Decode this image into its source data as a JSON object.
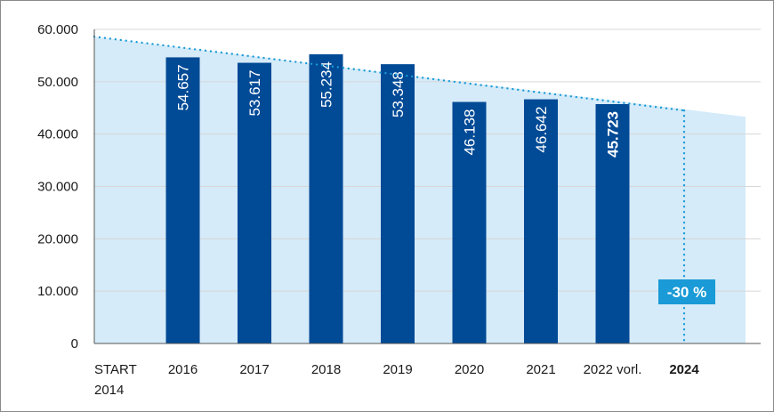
{
  "chart_data": {
    "type": "bar",
    "ylim": [
      0,
      60000
    ],
    "y_ticks": [
      {
        "value": 0,
        "label": "0"
      },
      {
        "value": 10000,
        "label": "10.000"
      },
      {
        "value": 20000,
        "label": "20.000"
      },
      {
        "value": 30000,
        "label": "30.000"
      },
      {
        "value": 40000,
        "label": "40.000"
      },
      {
        "value": 50000,
        "label": "50.000"
      },
      {
        "value": 60000,
        "label": "60.000"
      }
    ],
    "grid": true,
    "categories": [
      {
        "line1": "START",
        "line2": "2014",
        "bold": false
      },
      {
        "line1": "2016",
        "line2": "",
        "bold": false
      },
      {
        "line1": "2017",
        "line2": "",
        "bold": false
      },
      {
        "line1": "2018",
        "line2": "",
        "bold": false
      },
      {
        "line1": "2019",
        "line2": "",
        "bold": false
      },
      {
        "line1": "2020",
        "line2": "",
        "bold": false
      },
      {
        "line1": "2021",
        "line2": "",
        "bold": false
      },
      {
        "line1": "2022 vorl.",
        "line2": "",
        "bold": false
      },
      {
        "line1": "2024",
        "line2": "",
        "bold": true
      }
    ],
    "bars": [
      {
        "category_index": 1,
        "value": 54657,
        "label": "54.657",
        "bold": false
      },
      {
        "category_index": 2,
        "value": 53617,
        "label": "53.617",
        "bold": false
      },
      {
        "category_index": 3,
        "value": 55234,
        "label": "55.234",
        "bold": false
      },
      {
        "category_index": 4,
        "value": 53348,
        "label": "53.348",
        "bold": false
      },
      {
        "category_index": 5,
        "value": 46138,
        "label": "46.138",
        "bold": false
      },
      {
        "category_index": 6,
        "value": 46642,
        "label": "46.642",
        "bold": false
      },
      {
        "category_index": 7,
        "value": 45723,
        "label": "45.723",
        "bold": true
      }
    ],
    "target_trend": {
      "start_value": 58600,
      "end_value": 43300,
      "target_value": 44500,
      "target_category_index": 8
    },
    "target_badge": "-30 %",
    "colors": {
      "bar": "#004a96",
      "area": "#d5ebf9",
      "trend_dots": "#1a9ad6",
      "badge": "#1a9ad6",
      "grid": "#d6d6d6",
      "axis": "#555555"
    }
  }
}
